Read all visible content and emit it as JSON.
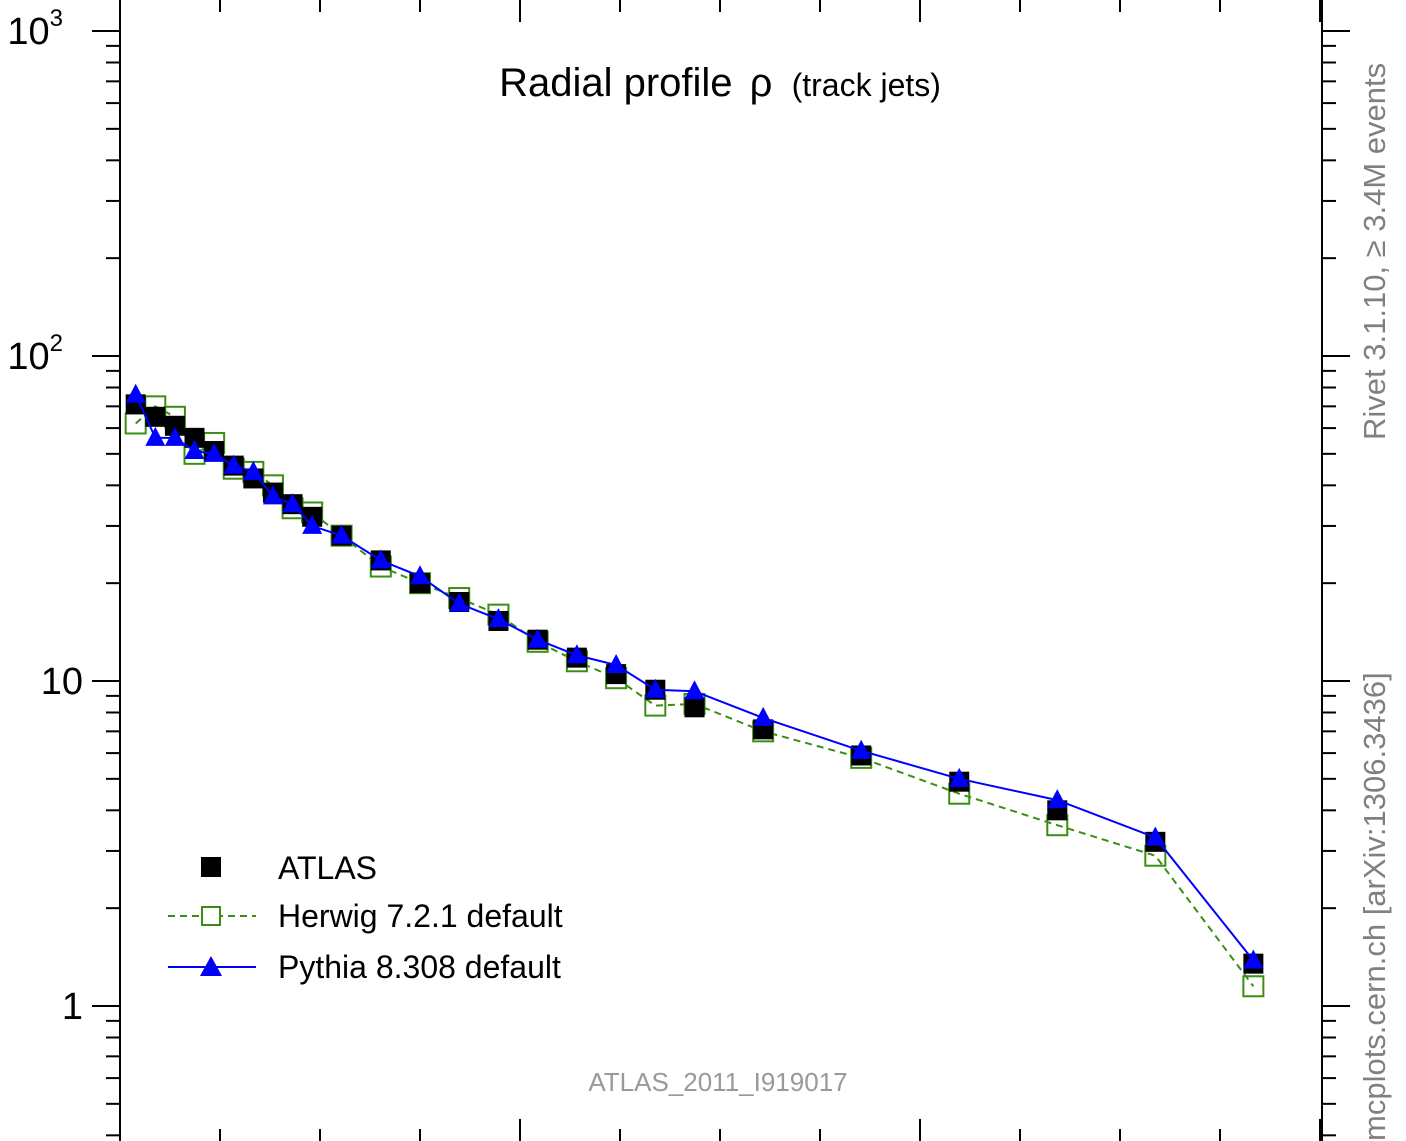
{
  "colors": {
    "atlas": "#000000",
    "herwig": "#3a8f12",
    "pythia": "#0000ff",
    "side_text": "#808080",
    "watermark": "#999999"
  },
  "title": {
    "main": "Radial profile",
    "symbol": "ρ",
    "suffix": "(track jets)"
  },
  "side_text": {
    "upper": "Rivet 3.1.10, ≥ 3.4M events",
    "lower": "mcplots.cern.ch [arXiv:1306.3436]"
  },
  "watermark": "ATLAS_2011_I919017",
  "legend": [
    {
      "label": "ATLAS",
      "style": "square-filled"
    },
    {
      "label": "Herwig 7.2.1 default",
      "style": "square-open-dashed"
    },
    {
      "label": "Pythia 8.308 default",
      "style": "triangle-line"
    }
  ],
  "y_tick_labels": [
    {
      "value": 1000,
      "base": "10",
      "exp": "3"
    },
    {
      "value": 100,
      "base": "10",
      "exp": "2"
    },
    {
      "value": 10,
      "base": "10",
      "exp": ""
    },
    {
      "value": 1,
      "base": "1",
      "exp": ""
    }
  ],
  "chart_data": {
    "type": "scatter",
    "y_scale": "log",
    "ylim": [
      0.4,
      1100
    ],
    "xlim": [
      -0.003,
      0.61
    ],
    "x_tick_labels_shown": false,
    "series": [
      {
        "name": "ATLAS",
        "x": [
          0.005,
          0.015,
          0.025,
          0.035,
          0.045,
          0.055,
          0.065,
          0.075,
          0.085,
          0.095,
          0.11,
          0.13,
          0.15,
          0.17,
          0.19,
          0.21,
          0.23,
          0.25,
          0.27,
          0.29,
          0.325,
          0.375,
          0.425,
          0.475,
          0.525,
          0.575
        ],
        "y": [
          71,
          65,
          61,
          56,
          51,
          46,
          42,
          38,
          35,
          32,
          28,
          23.5,
          20,
          17.5,
          15.3,
          13.4,
          11.8,
          10.5,
          9.4,
          8.3,
          7.1,
          5.9,
          4.9,
          4.0,
          3.2,
          1.35
        ]
      },
      {
        "name": "Herwig 7.2.1 default",
        "x": [
          0.005,
          0.015,
          0.025,
          0.035,
          0.045,
          0.055,
          0.065,
          0.075,
          0.085,
          0.095,
          0.11,
          0.13,
          0.15,
          0.17,
          0.19,
          0.21,
          0.23,
          0.25,
          0.27,
          0.29,
          0.325,
          0.375,
          0.425,
          0.475,
          0.525,
          0.575
        ],
        "y": [
          62,
          70,
          65,
          50,
          54,
          45,
          44,
          40,
          34,
          33,
          28,
          22.5,
          20,
          18,
          16,
          13.2,
          11.5,
          10.2,
          8.4,
          8.5,
          7.0,
          5.8,
          4.5,
          3.6,
          2.9,
          1.15
        ]
      },
      {
        "name": "Pythia 8.308 default",
        "x": [
          0.005,
          0.015,
          0.025,
          0.035,
          0.045,
          0.055,
          0.065,
          0.075,
          0.085,
          0.095,
          0.11,
          0.13,
          0.15,
          0.17,
          0.19,
          0.21,
          0.23,
          0.25,
          0.27,
          0.29,
          0.325,
          0.375,
          0.425,
          0.475,
          0.525,
          0.575
        ],
        "y": [
          76,
          56,
          56,
          51,
          50,
          46,
          44,
          37,
          35,
          30,
          28,
          23.5,
          21,
          17.3,
          15.5,
          13.4,
          12.0,
          11.2,
          9.4,
          9.3,
          7.7,
          6.1,
          5.0,
          4.3,
          3.3,
          1.38
        ]
      }
    ]
  }
}
